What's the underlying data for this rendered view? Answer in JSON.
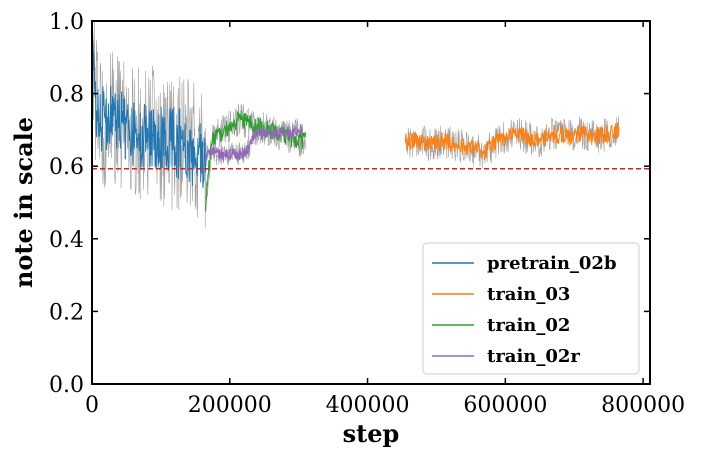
{
  "chart_data": {
    "type": "line",
    "title": "",
    "xlabel": "step",
    "ylabel": "note in scale",
    "xlim": [
      0,
      810000
    ],
    "ylim": [
      0.0,
      1.0
    ],
    "x_ticks": [
      0,
      200000,
      400000,
      600000,
      800000
    ],
    "x_tick_labels": [
      "0",
      "200000",
      "400000",
      "600000",
      "800000"
    ],
    "y_ticks": [
      0.0,
      0.2,
      0.4,
      0.6,
      0.8,
      1.0
    ],
    "y_tick_labels": [
      "0.0",
      "0.2",
      "0.4",
      "0.6",
      "0.8",
      "1.0"
    ],
    "grid": false,
    "legend_position": "lower-right",
    "reference_line": {
      "y": 0.593,
      "color": "#e41a1c",
      "style": "dashed"
    },
    "raw_trace_color": "#9e9e9e",
    "series": [
      {
        "name": "pretrain_02b",
        "color": "#1f77b4",
        "x": [
          0,
          5000,
          10000,
          20000,
          30000,
          40000,
          50000,
          60000,
          70000,
          80000,
          90000,
          100000,
          110000,
          120000,
          130000,
          140000,
          150000,
          160000,
          165000
        ],
        "y": [
          0.96,
          0.79,
          0.74,
          0.72,
          0.73,
          0.71,
          0.72,
          0.7,
          0.69,
          0.68,
          0.69,
          0.67,
          0.66,
          0.67,
          0.66,
          0.65,
          0.64,
          0.62,
          0.6
        ],
        "spread": 0.1
      },
      {
        "name": "train_03",
        "color": "#ff7f0e",
        "x": [
          455000,
          470000,
          490000,
          510000,
          530000,
          550000,
          570000,
          590000,
          610000,
          630000,
          650000,
          670000,
          690000,
          710000,
          730000,
          750000,
          765000
        ],
        "y": [
          0.67,
          0.67,
          0.66,
          0.67,
          0.66,
          0.65,
          0.64,
          0.67,
          0.69,
          0.68,
          0.67,
          0.69,
          0.68,
          0.69,
          0.68,
          0.69,
          0.7
        ],
        "spread": 0.025
      },
      {
        "name": "train_02",
        "color": "#2ca02c",
        "x": [
          165000,
          170000,
          175000,
          185000,
          195000,
          205000,
          215000,
          225000,
          240000,
          255000,
          270000,
          285000,
          300000,
          310000
        ],
        "y": [
          0.5,
          0.6,
          0.68,
          0.69,
          0.7,
          0.72,
          0.73,
          0.72,
          0.71,
          0.7,
          0.69,
          0.68,
          0.67,
          0.67
        ],
        "spread": 0.025
      },
      {
        "name": "train_02r",
        "color": "#9467bd",
        "x": [
          165000,
          175000,
          185000,
          195000,
          205000,
          215000,
          225000,
          235000,
          245000,
          255000,
          265000,
          275000,
          285000,
          295000,
          305000
        ],
        "y": [
          0.63,
          0.64,
          0.63,
          0.63,
          0.64,
          0.63,
          0.64,
          0.69,
          0.69,
          0.69,
          0.69,
          0.69,
          0.69,
          0.7,
          0.7
        ],
        "spread": 0.018
      }
    ]
  }
}
